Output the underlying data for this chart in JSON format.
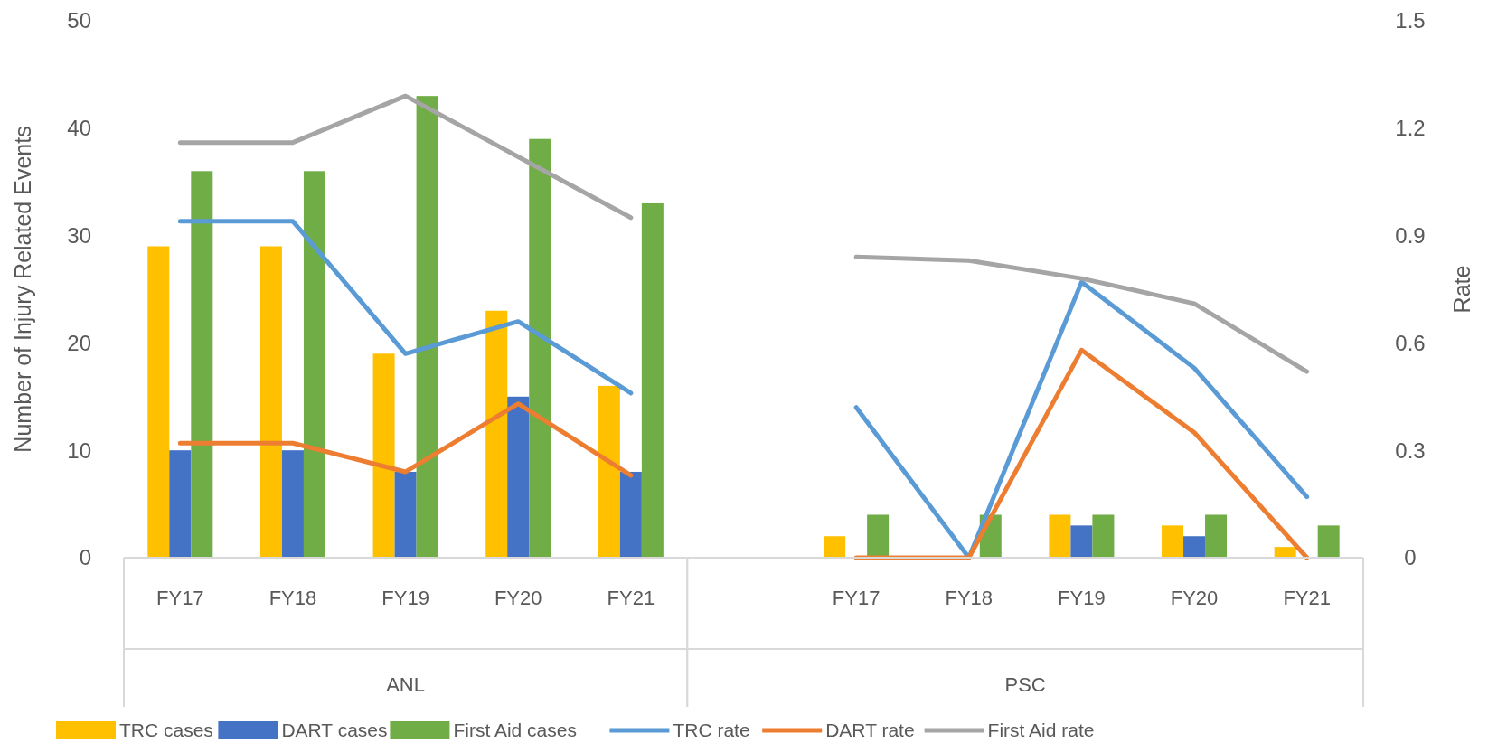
{
  "chart_data": {
    "type": "bar",
    "ylabel": "Number of Injury Related Events",
    "y2label": "Rate",
    "categories": [
      "FY17",
      "FY18",
      "FY19",
      "FY20",
      "FY21",
      null,
      "FY17",
      "FY18",
      "FY19",
      "FY20",
      "FY21"
    ],
    "annotations": [
      "ANL",
      "PSC"
    ],
    "series": [
      {
        "name": "TRC cases",
        "color": "#ffc000",
        "values": [
          29,
          29,
          19,
          23,
          16,
          null,
          2,
          0,
          4,
          3,
          1
        ]
      },
      {
        "name": "DART cases",
        "color": "#4472c4",
        "values": [
          10,
          10,
          8,
          15,
          8,
          null,
          0,
          0,
          3,
          2,
          0
        ]
      },
      {
        "name": "First Aid cases",
        "color": "#70ad47",
        "values": [
          36,
          36,
          43,
          39,
          33,
          null,
          4,
          4,
          4,
          4,
          3
        ]
      },
      {
        "name": "TRC rate",
        "type": "line",
        "axis": "y2",
        "color": "#5b9bd5",
        "values": [
          0.94,
          0.94,
          0.57,
          0.66,
          0.46,
          null,
          0.42,
          0,
          0.77,
          0.53,
          0.17
        ]
      },
      {
        "name": "DART rate",
        "type": "line",
        "axis": "y2",
        "color": "#ed7d31",
        "values": [
          0.32,
          0.32,
          0.24,
          0.43,
          0.23,
          null,
          0,
          0,
          0.58,
          0.35,
          0
        ]
      },
      {
        "name": "First Aid rate",
        "type": "line",
        "axis": "y2",
        "color": "#a5a5a5",
        "values": [
          1.16,
          1.16,
          1.29,
          1.12,
          0.95,
          null,
          0.84,
          0.83,
          0.78,
          0.71,
          0.52
        ]
      }
    ],
    "ylim": [
      0,
      50
    ],
    "yticks": [
      0,
      10,
      20,
      30,
      40,
      50
    ],
    "y2lim": [
      0,
      1.5
    ],
    "y2ticks": [
      0,
      {
        "value": 0.3,
        "label": "0.3"
      },
      {
        "value": 0.6,
        "label": "0.6"
      },
      {
        "value": 0.9,
        "label": "0.9"
      },
      {
        "value": 1.2,
        "label": "1.2"
      },
      1.5
    ],
    "grid": false,
    "legend": "bottom"
  }
}
